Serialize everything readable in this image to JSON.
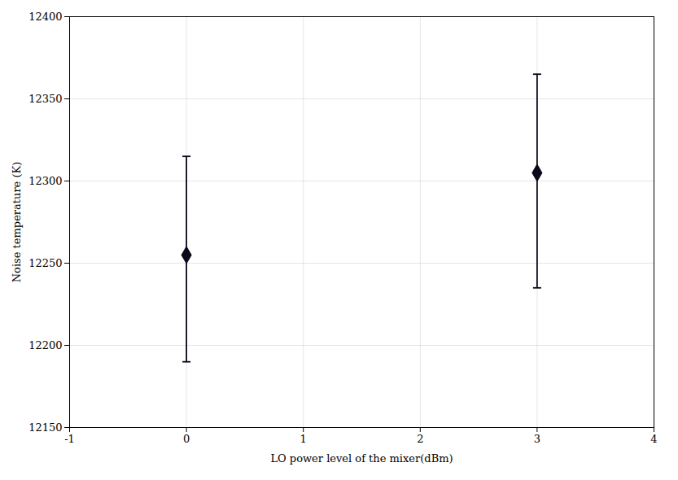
{
  "chart_data": {
    "type": "scatter",
    "x": [
      0,
      3
    ],
    "values": [
      12255,
      12305
    ],
    "yerr_lower": [
      65,
      70
    ],
    "yerr_upper": [
      60,
      60
    ],
    "xlim": [
      -1,
      4
    ],
    "ylim": [
      12150,
      12400
    ],
    "xticks": [
      -1,
      0,
      1,
      2,
      3,
      4
    ],
    "yticks": [
      12150,
      12200,
      12250,
      12300,
      12350,
      12400
    ],
    "xlabel": "LO power level of the mixer(dBm)",
    "ylabel": "Noise temperature (K)",
    "marker": "diamond",
    "color": "#0a0a1a",
    "grid": true
  }
}
